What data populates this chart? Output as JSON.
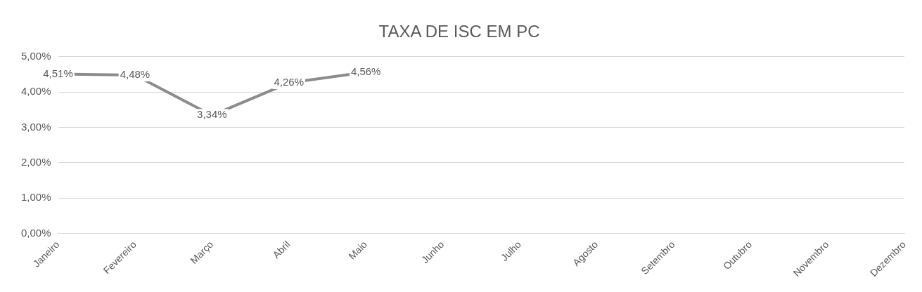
{
  "chart_data": {
    "type": "line",
    "title": "TAXA DE ISC EM PC",
    "categories": [
      "Janeiro",
      "Fevereiro",
      "Março",
      "Abril",
      "Maio",
      "Junho",
      "Julho",
      "Agosto",
      "Setembro",
      "Outubro",
      "Novembro",
      "Dezembro"
    ],
    "series": [
      {
        "color": "#8c8c8c",
        "values": [
          4.51,
          4.48,
          3.34,
          4.26,
          4.56,
          null,
          null,
          null,
          null,
          null,
          null,
          null
        ],
        "value_labels": [
          "4,51%",
          "4,48%",
          "3,34%",
          "4,26%",
          "4,56%",
          null,
          null,
          null,
          null,
          null,
          null,
          null
        ]
      }
    ],
    "ylim": [
      0,
      5
    ],
    "yticks": [
      {
        "value": 0,
        "label": "0,00%"
      },
      {
        "value": 1,
        "label": "1,00%"
      },
      {
        "value": 2,
        "label": "2,00%"
      },
      {
        "value": 3,
        "label": "3,00%"
      },
      {
        "value": 4,
        "label": "4,00%"
      },
      {
        "value": 5,
        "label": "5,00%"
      }
    ],
    "grid": "y",
    "legend": false,
    "line_style": "solid"
  }
}
